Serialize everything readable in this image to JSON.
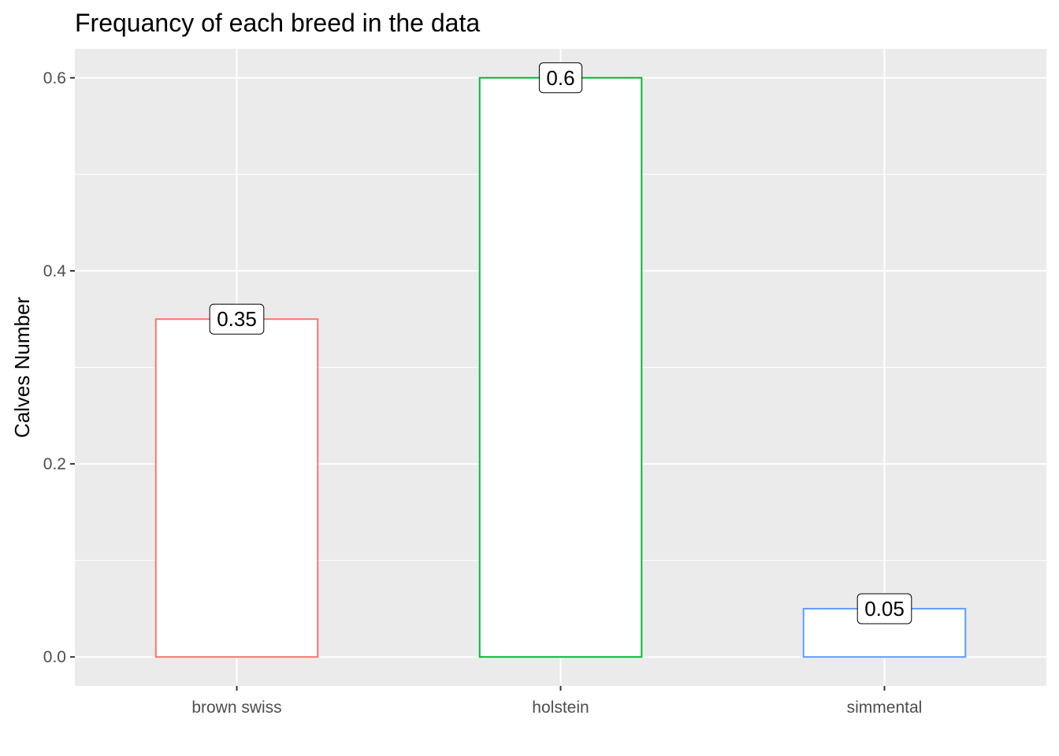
{
  "chart_data": {
    "type": "bar",
    "title": "Frequancy of each breed in the data",
    "xlabel": "",
    "ylabel": "Calves Number",
    "categories": [
      "brown swiss",
      "holstein",
      "simmental"
    ],
    "values": [
      0.35,
      0.6,
      0.05
    ],
    "data_labels": [
      "0.35",
      "0.6",
      "0.05"
    ],
    "colors": [
      "#F8766D",
      "#00BA38",
      "#619CFF"
    ],
    "bar_fill": "#ffffff",
    "ylim": [
      -0.03,
      0.63
    ],
    "yticks": [
      0.0,
      0.2,
      0.4,
      0.6
    ],
    "ytick_labels": [
      "0.0",
      "0.2",
      "0.4",
      "0.6"
    ],
    "grid": true,
    "legend": "none",
    "panel_background": "#EBEBEB"
  }
}
